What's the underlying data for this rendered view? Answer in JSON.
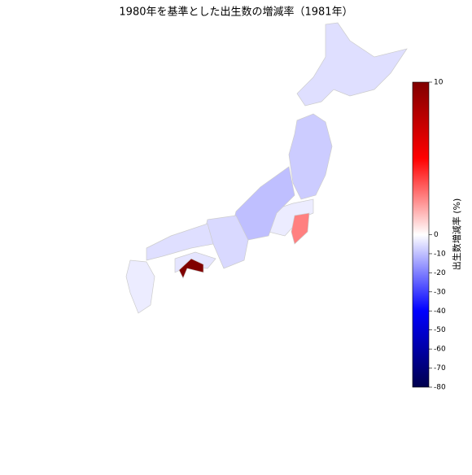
{
  "map_data": {
    "title": "1980年を基準とした出生数の増減率（1981年）",
    "colorbar": {
      "label": "出生数増減率 (%)",
      "vlim": [
        -80,
        10
      ],
      "vcenter": 0,
      "ticks": [
        10,
        0,
        -10,
        -20,
        -30,
        -40,
        -50,
        -60,
        -70,
        -80
      ]
    },
    "regions": {
      "values": [
        -5,
        -8,
        -3,
        2.5,
        -10,
        -6,
        -5,
        -4,
        10,
        -3
      ]
    }
  }
}
